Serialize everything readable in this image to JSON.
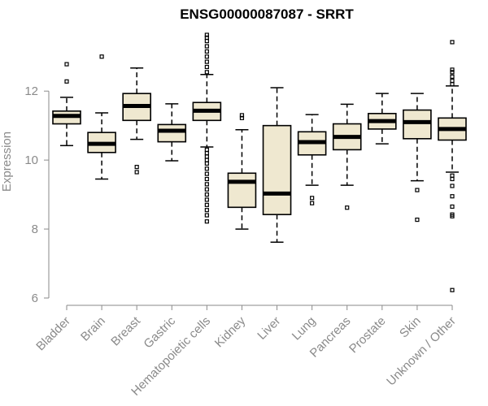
{
  "chart_data": {
    "type": "boxplot",
    "title": "ENSG00000087087 - SRRT",
    "ylabel": "Expression",
    "ylim": [
      6,
      13.7
    ],
    "yticks": [
      6,
      8,
      10,
      12
    ],
    "grid": false,
    "categories": [
      "Bladder",
      "Brain",
      "Breast",
      "Gastric",
      "Hematopoietic cells",
      "Kidney",
      "Liver",
      "Lung",
      "Pancreas",
      "Prostate",
      "Skin",
      "Unknown / Other"
    ],
    "boxes": [
      {
        "label": "Bladder",
        "whisker_low": 10.42,
        "q1": 11.05,
        "median": 11.28,
        "q3": 11.42,
        "whisker_high": 11.82,
        "outliers": [
          12.28,
          12.78
        ]
      },
      {
        "label": "Brain",
        "whisker_low": 9.45,
        "q1": 10.22,
        "median": 10.47,
        "q3": 10.8,
        "whisker_high": 11.37,
        "outliers": [
          13.0
        ]
      },
      {
        "label": "Breast",
        "whisker_low": 10.6,
        "q1": 11.15,
        "median": 11.57,
        "q3": 11.93,
        "whisker_high": 12.67,
        "outliers": [
          9.65,
          9.8
        ]
      },
      {
        "label": "Gastric",
        "whisker_low": 9.98,
        "q1": 10.53,
        "median": 10.85,
        "q3": 11.03,
        "whisker_high": 11.63,
        "outliers": []
      },
      {
        "label": "Hematopoietic cells",
        "whisker_low": 10.38,
        "q1": 11.15,
        "median": 11.43,
        "q3": 11.67,
        "whisker_high": 12.48,
        "outliers": [
          8.22,
          8.4,
          8.55,
          8.7,
          8.85,
          9.0,
          9.15,
          9.3,
          9.45,
          9.6,
          9.75,
          9.9,
          10.0,
          10.1,
          10.2,
          10.3,
          12.55,
          12.7,
          12.85,
          13.0,
          13.15,
          13.3,
          13.45,
          13.55,
          13.63
        ]
      },
      {
        "label": "Kidney",
        "whisker_low": 8.0,
        "q1": 8.63,
        "median": 9.37,
        "q3": 9.62,
        "whisker_high": 10.88,
        "outliers": [
          11.22,
          11.3
        ]
      },
      {
        "label": "Liver",
        "whisker_low": 7.62,
        "q1": 8.42,
        "median": 9.03,
        "q3": 11.0,
        "whisker_high": 12.1,
        "outliers": []
      },
      {
        "label": "Lung",
        "whisker_low": 9.27,
        "q1": 10.15,
        "median": 10.52,
        "q3": 10.82,
        "whisker_high": 11.32,
        "outliers": [
          8.75,
          8.9
        ]
      },
      {
        "label": "Pancreas",
        "whisker_low": 9.27,
        "q1": 10.3,
        "median": 10.67,
        "q3": 11.05,
        "whisker_high": 11.62,
        "outliers": [
          8.62
        ]
      },
      {
        "label": "Prostate",
        "whisker_low": 10.47,
        "q1": 10.9,
        "median": 11.13,
        "q3": 11.35,
        "whisker_high": 11.93,
        "outliers": []
      },
      {
        "label": "Skin",
        "whisker_low": 9.4,
        "q1": 10.62,
        "median": 11.1,
        "q3": 11.45,
        "whisker_high": 11.93,
        "outliers": [
          8.27,
          9.13
        ]
      },
      {
        "label": "Unknown / Other",
        "whisker_low": 9.65,
        "q1": 10.58,
        "median": 10.9,
        "q3": 11.22,
        "whisker_high": 12.15,
        "outliers": [
          6.23,
          8.37,
          8.42,
          8.65,
          8.95,
          9.25,
          9.45,
          9.55,
          12.2,
          12.3,
          12.42,
          12.55,
          12.62,
          13.42
        ]
      }
    ]
  }
}
